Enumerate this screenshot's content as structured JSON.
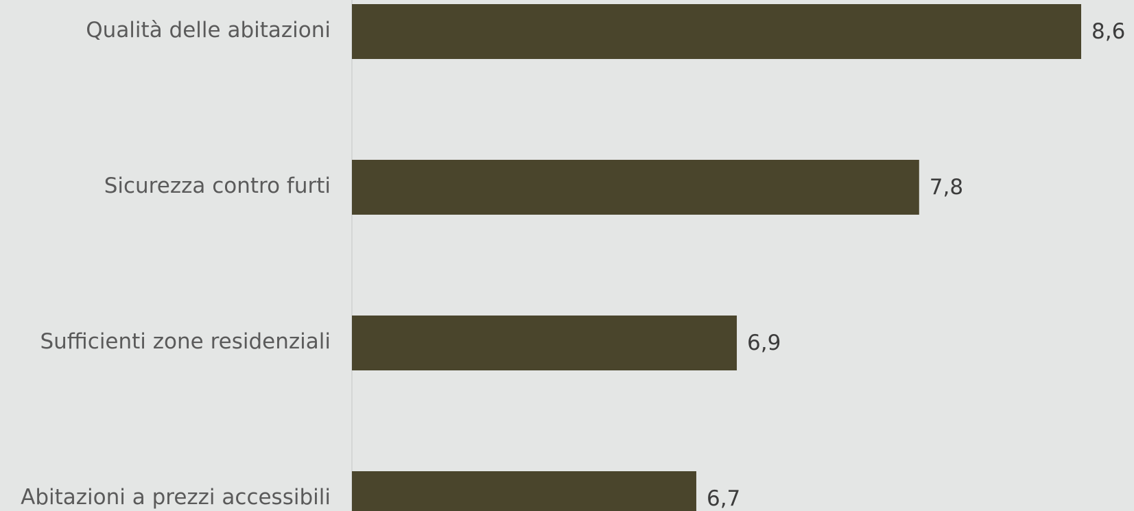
{
  "chart_data": {
    "type": "bar",
    "orientation": "horizontal",
    "categories": [
      "Qualità delle abitazioni",
      "Sicurezza contro furti",
      "Sufficienti zone residenziali",
      "Abitazioni a prezzi accessibili"
    ],
    "values": [
      8.6,
      7.8,
      6.9,
      6.7
    ],
    "value_labels": [
      "8,6",
      "7,8",
      "6,9",
      "6,7"
    ],
    "xlim": [
      5,
      8.6
    ],
    "grid": false,
    "legend": "none",
    "colors": {
      "bar": "#4a452c",
      "background": "#e4e6e5",
      "axis_line": "#d4d6d5",
      "category_text": "#5a5a5a",
      "value_text": "#3c3c3c"
    }
  }
}
